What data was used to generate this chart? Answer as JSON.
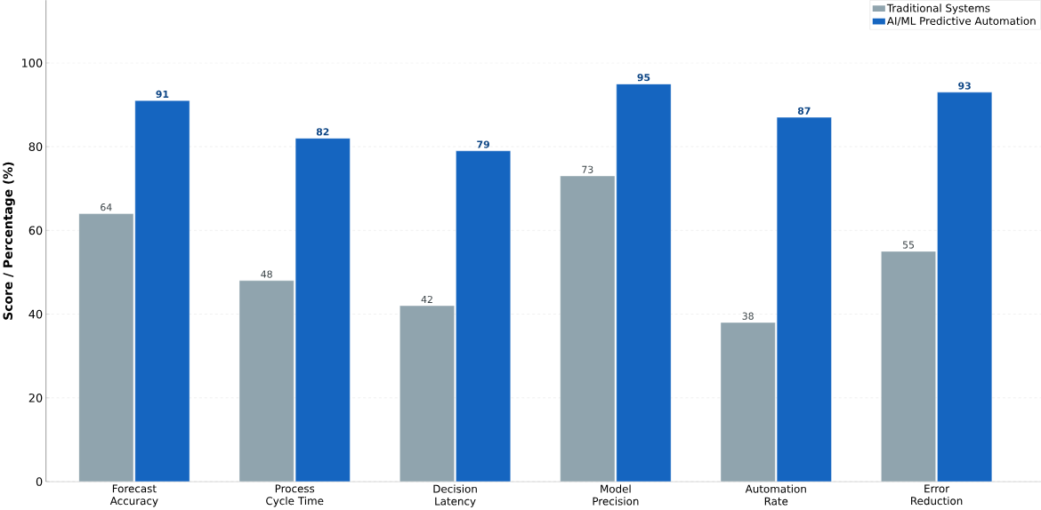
{
  "chart_data": {
    "type": "bar",
    "ylabel": "Score / Percentage (%)",
    "categories": [
      "Forecast Accuracy",
      "Process Cycle Time",
      "Decision Latency",
      "Model Precision",
      "Automation Rate",
      "Error Reduction"
    ],
    "series": [
      {
        "name": "Traditional Systems",
        "color": "#90a4ae",
        "values": [
          64,
          48,
          42,
          73,
          38,
          55
        ]
      },
      {
        "name": "AI/ML Predictive Automation",
        "color": "#1565c0",
        "values": [
          91,
          82,
          79,
          95,
          87,
          93
        ]
      }
    ],
    "ylim": [
      0,
      115
    ],
    "yticks": [
      0,
      20,
      40,
      60,
      80,
      100
    ],
    "grid": "y",
    "legend": "top right",
    "data_labels": true
  }
}
